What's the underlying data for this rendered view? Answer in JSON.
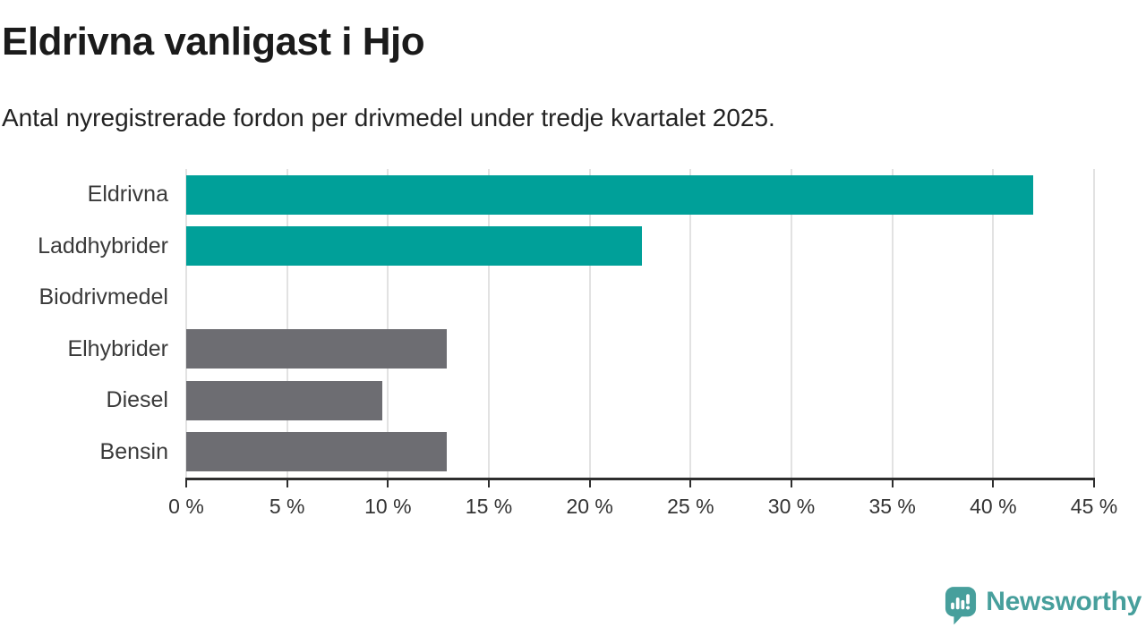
{
  "header": {
    "title": "Eldrivna vanligast i Hjo",
    "subtitle": "Antal nyregistrerade fordon per drivmedel under tredje kvartalet 2025."
  },
  "chart_data": {
    "type": "bar",
    "orientation": "horizontal",
    "title": "Eldrivna vanligast i Hjo",
    "subtitle": "Antal nyregistrerade fordon per drivmedel under tredje kvartalet 2025.",
    "categories": [
      "Eldrivna",
      "Laddhybrider",
      "Biodrivmedel",
      "Elhybrider",
      "Diesel",
      "Bensin"
    ],
    "values": [
      42.0,
      22.6,
      0,
      12.9,
      9.7,
      12.9
    ],
    "unit": "%",
    "xlabel": "",
    "ylabel": "",
    "xlim": [
      0,
      45
    ],
    "tick_step": 5,
    "tick_labels": [
      "0 %",
      "5 %",
      "10 %",
      "15 %",
      "20 %",
      "25 %",
      "30 %",
      "35 %",
      "40 %",
      "45 %"
    ],
    "bar_colors": [
      "#00a099",
      "#00a099",
      "#00a099",
      "#6d6d72",
      "#6d6d72",
      "#6d6d72"
    ],
    "grid": true,
    "legend": false
  },
  "branding": {
    "wordmark": "Newsworthy",
    "logo_icon": "speech-bubble-bar-chart-icon",
    "brand_color": "#479f9c"
  },
  "colors": {
    "accent_teal": "#00a099",
    "neutral_gray": "#6d6d72",
    "gridline": "#e2e2e2",
    "axis": "#2e2e2e",
    "text_dark": "#1b1b1b",
    "text_medium": "#3a3a3a"
  }
}
